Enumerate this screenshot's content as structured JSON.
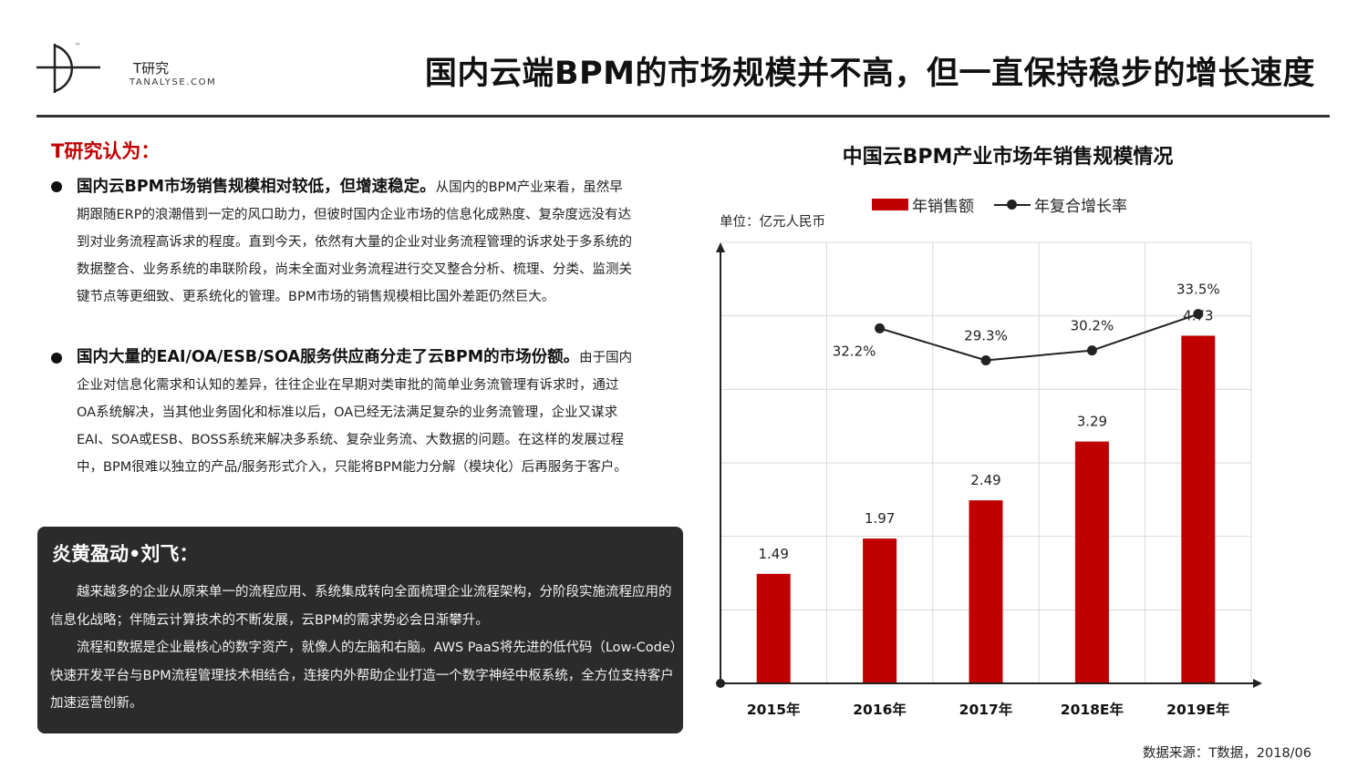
{
  "logo": {
    "cn": "T研究",
    "en": "TANALYSE.COM",
    "tm": "™"
  },
  "page_title": "国内云端BPM的市场规模并不高，但一直保持稳步的增长速度",
  "opinion": {
    "heading": "T研究认为：",
    "points": [
      {
        "lead": "国内云BPM市场销售规模相对较低，但增速稳定。",
        "text": "从国内的BPM产业来看，虽然早期跟随ERP的浪潮借到一定的风口助力，但彼时国内企业市场的信息化成熟度、复杂度远没有达到对业务流程高诉求的程度。直到今天，依然有大量的企业对业务流程管理的诉求处于多系统的数据整合、业务系统的串联阶段，尚未全面对业务流程进行交叉整合分析、梳理、分类、监测关键节点等更细致、更系统化的管理。BPM市场的销售规模相比国外差距仍然巨大。"
      },
      {
        "lead": "国内大量的EAI/OA/ESB/SOA服务供应商分走了云BPM的市场份额。",
        "text": "由于国内企业对信息化需求和认知的差异，往往企业在早期对类审批的简单业务流管理有诉求时，通过OA系统解决，当其他业务固化和标准以后，OA已经无法满足复杂的业务流管理，企业又谋求EAI、SOA或ESB、BOSS系统来解决多系统、复杂业务流、大数据的问题。在这样的发展过程中，BPM很难以独立的产品/服务形式介入，只能将BPM能力分解（模块化）后再服务于客户。"
      }
    ]
  },
  "quote": {
    "title": "炎黄盈动•刘飞：",
    "paragraphs": [
      "越来越多的企业从原来单一的流程应用、系统集成转向全面梳理企业流程架构，分阶段实施流程应用的信息化战略；伴随云计算技术的不断发展，云BPM的需求势必会日渐攀升。",
      "流程和数据是企业最核心的数字资产，就像人的左脑和右脑。AWS PaaS将先进的低代码（Low-Code）快速开发平台与BPM流程管理技术相结合，连接内外帮助企业打造一个数字神经中枢系统，全方位支持客户加速运营创新。"
    ]
  },
  "chart_data": {
    "type": "bar",
    "title": "中国云BPM产业市场年销售规模情况",
    "unit_label": "单位：亿元人民币",
    "categories": [
      "2015年",
      "2016年",
      "2017年",
      "2018E年",
      "2019E年"
    ],
    "series": [
      {
        "name": "年销售额",
        "kind": "bar",
        "values": [
          1.49,
          1.97,
          2.49,
          3.29,
          4.73
        ],
        "labels": [
          "1.49",
          "1.97",
          "2.49",
          "3.29",
          "4.73"
        ],
        "color": "#c00000"
      },
      {
        "name": "年复合增长率",
        "kind": "line",
        "values": [
          null,
          32.2,
          29.3,
          30.2,
          33.5
        ],
        "labels": [
          "",
          "32.2%",
          "29.3%",
          "30.2%",
          "33.5%"
        ],
        "color": "#222222"
      }
    ],
    "ylim": [
      0,
      6
    ],
    "y2lim": [
      0,
      40
    ],
    "grid": true,
    "legend": "top"
  },
  "source": "数据来源：T数据，2018/06",
  "colors": {
    "accent": "#c00000",
    "dark_box": "#2b2b2b"
  }
}
